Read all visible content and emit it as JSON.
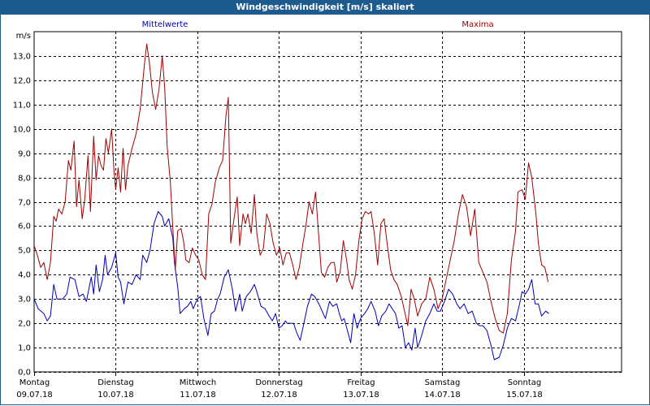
{
  "window": {
    "title": "Windgeschwindigkeit [m/s] skaliert"
  },
  "colors": {
    "mean": "#0000b4",
    "max": "#a00000",
    "grid": "#000000",
    "titlebar": "#1d5a8e"
  },
  "chart_data": {
    "type": "line",
    "ylabel": "m/s",
    "ylim": [
      0,
      14
    ],
    "yticks": [
      "0,0",
      "1,0",
      "2,0",
      "3,0",
      "4,0",
      "5,0",
      "6,0",
      "7,0",
      "8,0",
      "9,0",
      "10,0",
      "11,0",
      "12,0",
      "13,0"
    ],
    "x_range_days": [
      0,
      7.2
    ],
    "grid": "dashed",
    "days": [
      {
        "name": "Montag",
        "date": "09.07.18"
      },
      {
        "name": "Dienstag",
        "date": "10.07.18"
      },
      {
        "name": "Mittwoch",
        "date": "11.07.18"
      },
      {
        "name": "Donnerstag",
        "date": "12.07.18"
      },
      {
        "name": "Freitag",
        "date": "13.07.18"
      },
      {
        "name": "Samstag",
        "date": "14.07.18"
      },
      {
        "name": "Sonntag",
        "date": "15.07.18"
      }
    ],
    "series": [
      {
        "name": "Mittelwerte",
        "color": "#0000b4",
        "points": [
          [
            0.0,
            3.0
          ],
          [
            0.05,
            2.6
          ],
          [
            0.12,
            2.4
          ],
          [
            0.16,
            2.1
          ],
          [
            0.2,
            2.3
          ],
          [
            0.24,
            3.6
          ],
          [
            0.28,
            3.0
          ],
          [
            0.35,
            3.0
          ],
          [
            0.4,
            3.2
          ],
          [
            0.44,
            3.9
          ],
          [
            0.5,
            3.8
          ],
          [
            0.55,
            3.1
          ],
          [
            0.6,
            3.2
          ],
          [
            0.64,
            2.9
          ],
          [
            0.7,
            3.9
          ],
          [
            0.73,
            3.2
          ],
          [
            0.76,
            4.4
          ],
          [
            0.8,
            3.3
          ],
          [
            0.84,
            3.8
          ],
          [
            0.87,
            4.8
          ],
          [
            0.9,
            4.0
          ],
          [
            0.95,
            4.3
          ],
          [
            1.0,
            4.9
          ],
          [
            1.03,
            3.9
          ],
          [
            1.06,
            3.7
          ],
          [
            1.1,
            2.8
          ],
          [
            1.15,
            3.7
          ],
          [
            1.2,
            3.6
          ],
          [
            1.25,
            4.0
          ],
          [
            1.3,
            3.8
          ],
          [
            1.33,
            4.8
          ],
          [
            1.38,
            4.5
          ],
          [
            1.42,
            5.0
          ],
          [
            1.47,
            6.1
          ],
          [
            1.52,
            6.6
          ],
          [
            1.57,
            6.4
          ],
          [
            1.6,
            6.0
          ],
          [
            1.65,
            6.3
          ],
          [
            1.7,
            5.5
          ],
          [
            1.72,
            4.5
          ],
          [
            1.76,
            3.5
          ],
          [
            1.79,
            2.4
          ],
          [
            1.84,
            2.6
          ],
          [
            1.88,
            2.7
          ],
          [
            1.92,
            2.9
          ],
          [
            1.95,
            2.6
          ],
          [
            2.0,
            3.0
          ],
          [
            2.04,
            3.1
          ],
          [
            2.08,
            2.2
          ],
          [
            2.13,
            1.5
          ],
          [
            2.17,
            2.4
          ],
          [
            2.21,
            2.5
          ],
          [
            2.25,
            3.0
          ],
          [
            2.28,
            3.2
          ],
          [
            2.33,
            3.9
          ],
          [
            2.38,
            4.2
          ],
          [
            2.43,
            3.4
          ],
          [
            2.47,
            2.5
          ],
          [
            2.52,
            3.2
          ],
          [
            2.55,
            2.5
          ],
          [
            2.6,
            3.1
          ],
          [
            2.65,
            3.3
          ],
          [
            2.7,
            3.6
          ],
          [
            2.73,
            3.3
          ],
          [
            2.78,
            2.7
          ],
          [
            2.83,
            2.6
          ],
          [
            2.88,
            2.3
          ],
          [
            2.92,
            2.1
          ],
          [
            2.96,
            2.4
          ],
          [
            3.0,
            1.8
          ],
          [
            3.04,
            1.9
          ],
          [
            3.08,
            2.1
          ],
          [
            3.1,
            2.0
          ],
          [
            3.14,
            2.0
          ],
          [
            3.18,
            2.0
          ],
          [
            3.22,
            1.6
          ],
          [
            3.26,
            1.3
          ],
          [
            3.3,
            1.9
          ],
          [
            3.35,
            2.7
          ],
          [
            3.4,
            3.2
          ],
          [
            3.44,
            3.1
          ],
          [
            3.49,
            2.8
          ],
          [
            3.53,
            2.5
          ],
          [
            3.57,
            2.2
          ],
          [
            3.62,
            2.9
          ],
          [
            3.66,
            2.7
          ],
          [
            3.71,
            2.8
          ],
          [
            3.74,
            2.4
          ],
          [
            3.77,
            2.1
          ],
          [
            3.8,
            2.2
          ],
          [
            3.84,
            1.7
          ],
          [
            3.88,
            1.2
          ],
          [
            3.92,
            2.4
          ],
          [
            3.96,
            1.8
          ],
          [
            4.0,
            2.2
          ],
          [
            4.05,
            2.4
          ],
          [
            4.09,
            2.6
          ],
          [
            4.13,
            2.9
          ],
          [
            4.18,
            2.5
          ],
          [
            4.22,
            1.9
          ],
          [
            4.26,
            2.3
          ],
          [
            4.31,
            2.5
          ],
          [
            4.35,
            2.8
          ],
          [
            4.39,
            2.6
          ],
          [
            4.43,
            2.4
          ],
          [
            4.47,
            1.8
          ],
          [
            4.51,
            1.9
          ],
          [
            4.55,
            1.0
          ],
          [
            4.59,
            1.2
          ],
          [
            4.63,
            0.9
          ],
          [
            4.67,
            1.8
          ],
          [
            4.7,
            1.0
          ],
          [
            4.75,
            1.5
          ],
          [
            4.8,
            2.1
          ],
          [
            4.85,
            2.4
          ],
          [
            4.9,
            2.8
          ],
          [
            4.94,
            2.5
          ],
          [
            4.98,
            2.5
          ],
          [
            5.03,
            2.9
          ],
          [
            5.08,
            3.4
          ],
          [
            5.13,
            3.2
          ],
          [
            5.18,
            2.8
          ],
          [
            5.22,
            2.6
          ],
          [
            5.27,
            2.8
          ],
          [
            5.32,
            2.4
          ],
          [
            5.37,
            2.5
          ],
          [
            5.42,
            2.0
          ],
          [
            5.46,
            1.9
          ],
          [
            5.5,
            1.9
          ],
          [
            5.55,
            1.7
          ],
          [
            5.6,
            1.1
          ],
          [
            5.64,
            0.5
          ],
          [
            5.7,
            0.6
          ],
          [
            5.75,
            1.1
          ],
          [
            5.8,
            1.8
          ],
          [
            5.85,
            2.2
          ],
          [
            5.9,
            2.1
          ],
          [
            5.95,
            2.8
          ],
          [
            5.98,
            3.3
          ],
          [
            6.02,
            3.2
          ],
          [
            6.06,
            3.4
          ],
          [
            6.1,
            3.8
          ],
          [
            6.14,
            2.8
          ],
          [
            6.18,
            2.8
          ],
          [
            6.22,
            2.3
          ],
          [
            6.27,
            2.5
          ],
          [
            6.31,
            2.4
          ]
        ]
      },
      {
        "name": "Maxima",
        "color": "#a00000",
        "points": [
          [
            0.0,
            5.2
          ],
          [
            0.04,
            4.8
          ],
          [
            0.08,
            4.3
          ],
          [
            0.12,
            4.5
          ],
          [
            0.16,
            3.8
          ],
          [
            0.2,
            4.5
          ],
          [
            0.24,
            6.4
          ],
          [
            0.27,
            6.2
          ],
          [
            0.3,
            6.7
          ],
          [
            0.34,
            6.5
          ],
          [
            0.38,
            7.0
          ],
          [
            0.42,
            8.7
          ],
          [
            0.45,
            8.3
          ],
          [
            0.49,
            9.5
          ],
          [
            0.52,
            6.8
          ],
          [
            0.55,
            7.9
          ],
          [
            0.59,
            6.3
          ],
          [
            0.62,
            7.1
          ],
          [
            0.66,
            8.9
          ],
          [
            0.69,
            6.6
          ],
          [
            0.73,
            9.7
          ],
          [
            0.76,
            7.9
          ],
          [
            0.79,
            8.9
          ],
          [
            0.82,
            8.5
          ],
          [
            0.85,
            8.3
          ],
          [
            0.88,
            9.6
          ],
          [
            0.91,
            9.0
          ],
          [
            0.95,
            10.0
          ],
          [
            0.98,
            8.2
          ],
          [
            1.0,
            7.5
          ],
          [
            1.03,
            8.4
          ],
          [
            1.06,
            7.4
          ],
          [
            1.09,
            9.2
          ],
          [
            1.12,
            7.5
          ],
          [
            1.15,
            8.5
          ],
          [
            1.2,
            9.2
          ],
          [
            1.25,
            9.8
          ],
          [
            1.3,
            10.8
          ],
          [
            1.35,
            12.6
          ],
          [
            1.38,
            13.5
          ],
          [
            1.41,
            12.8
          ],
          [
            1.45,
            11.5
          ],
          [
            1.49,
            10.8
          ],
          [
            1.53,
            11.6
          ],
          [
            1.57,
            13.0
          ],
          [
            1.6,
            11.7
          ],
          [
            1.63,
            9.3
          ],
          [
            1.67,
            7.8
          ],
          [
            1.7,
            5.9
          ],
          [
            1.73,
            4.2
          ],
          [
            1.76,
            5.8
          ],
          [
            1.8,
            5.9
          ],
          [
            1.83,
            5.4
          ],
          [
            1.86,
            4.6
          ],
          [
            1.9,
            4.5
          ],
          [
            1.94,
            5.1
          ],
          [
            1.98,
            4.8
          ],
          [
            2.02,
            4.6
          ],
          [
            2.06,
            4.0
          ],
          [
            2.1,
            3.8
          ],
          [
            2.14,
            6.5
          ],
          [
            2.18,
            6.9
          ],
          [
            2.22,
            7.8
          ],
          [
            2.27,
            8.4
          ],
          [
            2.31,
            8.7
          ],
          [
            2.35,
            10.5
          ],
          [
            2.38,
            11.3
          ],
          [
            2.41,
            5.3
          ],
          [
            2.45,
            6.3
          ],
          [
            2.49,
            7.2
          ],
          [
            2.52,
            5.2
          ],
          [
            2.56,
            6.5
          ],
          [
            2.59,
            6.1
          ],
          [
            2.62,
            6.5
          ],
          [
            2.66,
            5.7
          ],
          [
            2.7,
            7.3
          ],
          [
            2.73,
            5.7
          ],
          [
            2.77,
            4.8
          ],
          [
            2.81,
            5.1
          ],
          [
            2.85,
            6.5
          ],
          [
            2.89,
            6.1
          ],
          [
            2.93,
            5.3
          ],
          [
            2.97,
            4.8
          ],
          [
            3.01,
            5.1
          ],
          [
            3.05,
            4.4
          ],
          [
            3.09,
            4.9
          ],
          [
            3.13,
            4.9
          ],
          [
            3.17,
            4.4
          ],
          [
            3.21,
            3.8
          ],
          [
            3.25,
            4.3
          ],
          [
            3.29,
            5.2
          ],
          [
            3.33,
            6.0
          ],
          [
            3.37,
            7.0
          ],
          [
            3.41,
            6.5
          ],
          [
            3.45,
            7.4
          ],
          [
            3.48,
            6.0
          ],
          [
            3.52,
            4.1
          ],
          [
            3.56,
            3.9
          ],
          [
            3.6,
            4.3
          ],
          [
            3.64,
            4.5
          ],
          [
            3.68,
            4.5
          ],
          [
            3.71,
            3.7
          ],
          [
            3.75,
            4.1
          ],
          [
            3.79,
            5.4
          ],
          [
            3.83,
            4.6
          ],
          [
            3.86,
            3.8
          ],
          [
            3.9,
            3.4
          ],
          [
            3.94,
            4.0
          ],
          [
            3.98,
            5.4
          ],
          [
            4.02,
            6.3
          ],
          [
            4.06,
            6.6
          ],
          [
            4.1,
            6.5
          ],
          [
            4.13,
            6.6
          ],
          [
            4.17,
            5.7
          ],
          [
            4.21,
            4.4
          ],
          [
            4.25,
            6.1
          ],
          [
            4.29,
            6.3
          ],
          [
            4.33,
            5.2
          ],
          [
            4.37,
            4.2
          ],
          [
            4.41,
            3.8
          ],
          [
            4.45,
            3.6
          ],
          [
            4.5,
            3.1
          ],
          [
            4.54,
            2.5
          ],
          [
            4.58,
            1.9
          ],
          [
            4.62,
            3.4
          ],
          [
            4.66,
            3.0
          ],
          [
            4.7,
            2.3
          ],
          [
            4.75,
            2.8
          ],
          [
            4.8,
            3.0
          ],
          [
            4.85,
            3.9
          ],
          [
            4.9,
            3.4
          ],
          [
            4.95,
            2.6
          ],
          [
            5.0,
            3.0
          ],
          [
            5.05,
            3.8
          ],
          [
            5.1,
            4.6
          ],
          [
            5.15,
            5.4
          ],
          [
            5.2,
            6.5
          ],
          [
            5.25,
            7.3
          ],
          [
            5.3,
            6.8
          ],
          [
            5.35,
            5.6
          ],
          [
            5.4,
            6.7
          ],
          [
            5.45,
            4.5
          ],
          [
            5.5,
            4.1
          ],
          [
            5.55,
            3.7
          ],
          [
            5.6,
            2.9
          ],
          [
            5.65,
            2.2
          ],
          [
            5.7,
            1.7
          ],
          [
            5.75,
            1.6
          ],
          [
            5.8,
            2.4
          ],
          [
            5.85,
            4.6
          ],
          [
            5.9,
            5.8
          ],
          [
            5.93,
            7.4
          ],
          [
            5.98,
            7.5
          ],
          [
            6.02,
            7.1
          ],
          [
            6.06,
            8.6
          ],
          [
            6.1,
            8.0
          ],
          [
            6.15,
            6.5
          ],
          [
            6.18,
            5.3
          ],
          [
            6.22,
            4.4
          ],
          [
            6.26,
            4.3
          ],
          [
            6.3,
            3.7
          ]
        ]
      }
    ]
  }
}
